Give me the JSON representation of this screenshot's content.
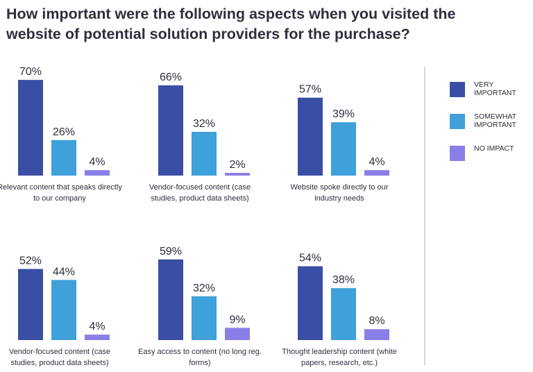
{
  "title": "How important were the following aspects when you visited the website of potential solution providers for the purchase?",
  "legend": [
    {
      "label": "VERY IMPORTANT",
      "color": "#3a4fa3"
    },
    {
      "label": "SOMEWHAT IMPORTANT",
      "color": "#3fa0da"
    },
    {
      "label": "NO IMPACT",
      "color": "#8a7fe6"
    }
  ],
  "chart_data": [
    {
      "type": "bar",
      "title": "Relevant content that speaks directly to our company",
      "categories": [
        "VERY IMPORTANT",
        "SOMEWHAT IMPORTANT",
        "NO IMPACT"
      ],
      "values": [
        70,
        26,
        4
      ],
      "labels": [
        "70%",
        "26%",
        "4%"
      ],
      "ylim": [
        0,
        100
      ]
    },
    {
      "type": "bar",
      "title": "Vendor-focused content (case studies, product data sheets)",
      "categories": [
        "VERY IMPORTANT",
        "SOMEWHAT IMPORTANT",
        "NO IMPACT"
      ],
      "values": [
        66,
        32,
        2
      ],
      "labels": [
        "66%",
        "32%",
        "2%"
      ],
      "ylim": [
        0,
        100
      ]
    },
    {
      "type": "bar",
      "title": "Website spoke directly to our industry needs",
      "categories": [
        "VERY IMPORTANT",
        "SOMEWHAT IMPORTANT",
        "NO IMPACT"
      ],
      "values": [
        57,
        39,
        4
      ],
      "labels": [
        "57%",
        "39%",
        "4%"
      ],
      "ylim": [
        0,
        100
      ]
    },
    {
      "type": "bar",
      "title": "Vendor-focused content (case studies, product data sheets)",
      "categories": [
        "VERY IMPORTANT",
        "SOMEWHAT IMPORTANT",
        "NO IMPACT"
      ],
      "values": [
        52,
        44,
        4
      ],
      "labels": [
        "52%",
        "44%",
        "4%"
      ],
      "ylim": [
        0,
        100
      ]
    },
    {
      "type": "bar",
      "title": "Easy access to content (no long reg. forms)",
      "categories": [
        "VERY IMPORTANT",
        "SOMEWHAT IMPORTANT",
        "NO IMPACT"
      ],
      "values": [
        59,
        32,
        9
      ],
      "labels": [
        "59%",
        "32%",
        "9%"
      ],
      "ylim": [
        0,
        100
      ]
    },
    {
      "type": "bar",
      "title": "Thought leadership content (white papers, research, etc.)",
      "categories": [
        "VERY IMPORTANT",
        "SOMEWHAT IMPORTANT",
        "NO IMPACT"
      ],
      "values": [
        54,
        38,
        8
      ],
      "labels": [
        "54%",
        "38%",
        "8%"
      ],
      "ylim": [
        0,
        100
      ]
    }
  ]
}
